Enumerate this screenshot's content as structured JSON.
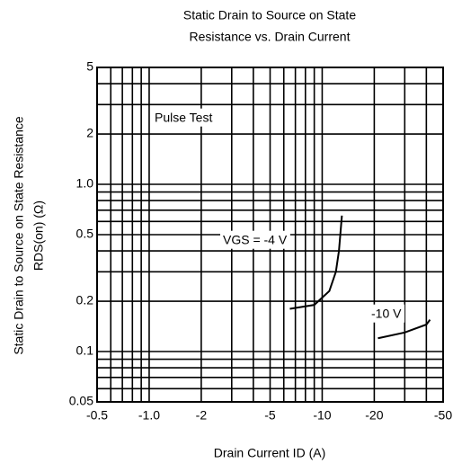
{
  "chart_data": {
    "type": "line",
    "title": [
      "Static Drain to Source on State",
      "Resistance vs. Drain Current"
    ],
    "y_label": [
      "Static Drain to Source on State Resistance",
      "RDS(on)  (Ω)"
    ],
    "x_label": "Drain Current  ID  (A)",
    "annotation": "Pulse Test",
    "log_x": true,
    "log_y": true,
    "grid": true,
    "xlim": [
      -0.5,
      -50
    ],
    "ylim": [
      0.05,
      5
    ],
    "xticks": [
      -0.5,
      {
        "value": -1,
        "label": "-1.0"
      },
      -2,
      -5,
      -10,
      -20,
      -50
    ],
    "yticks": [
      0.05,
      0.1,
      0.2,
      0.5,
      {
        "value": 1,
        "label": "1.0"
      },
      2,
      5
    ],
    "x_minor_ticks": [
      -0.6,
      -0.7,
      -0.8,
      -0.9,
      -3,
      -4,
      -6,
      -7,
      -8,
      -9,
      -30,
      -40
    ],
    "y_minor_ticks": [
      0.06,
      0.07,
      0.08,
      0.09,
      0.3,
      0.4,
      0.6,
      0.7,
      0.8,
      0.9,
      3,
      4
    ],
    "series": [
      {
        "name": "VGS = -4 V",
        "color": "#000000",
        "x": [
          -6.5,
          -9,
          -11,
          -12,
          -12.5,
          -13
        ],
        "values": [
          0.18,
          0.19,
          0.23,
          0.3,
          0.4,
          0.65
        ]
      },
      {
        "name": "-10 V",
        "color": "#000000",
        "x": [
          -21,
          -30,
          -40,
          -42
        ],
        "values": [
          0.12,
          0.13,
          0.145,
          0.155
        ]
      }
    ]
  }
}
